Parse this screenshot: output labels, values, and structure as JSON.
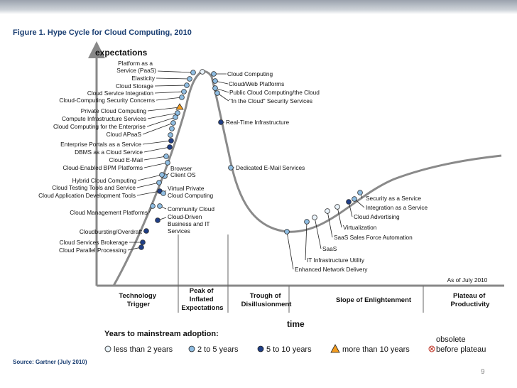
{
  "title": "Figure 1. Hype Cycle for Cloud Computing, 2010",
  "y_axis_label": "expectations",
  "x_axis_label": "time",
  "as_of": "As of July 2010",
  "source": "Source: Gartner (July 2010)",
  "page_number": "9",
  "phases": {
    "trigger": [
      "Technology",
      "Trigger"
    ],
    "peak": [
      "Peak of",
      "Inflated",
      "Expectations"
    ],
    "trough": [
      "Trough of",
      "Disillusionment"
    ],
    "slope": [
      "Slope of Enlightenment"
    ],
    "plateau": [
      "Plateau of",
      "Productivity"
    ]
  },
  "legend": {
    "title": "Years to mainstream adoption:",
    "less2": "less than 2 years",
    "two5": "2 to 5 years",
    "five10": "5 to 10 years",
    "more10": "more than 10 years",
    "obsolete": [
      "obsolete",
      "before plateau"
    ]
  },
  "labels": {
    "paas": [
      "Platform as a",
      "Service (PaaS)"
    ],
    "elasticity": "Elasticity",
    "cloud_storage": "Cloud Storage",
    "csi": "Cloud Service Integration",
    "ccsc": "Cloud-Computing Security Concerns",
    "pcc": "Private Cloud Computing",
    "cis": "Compute Infrastructure Services",
    "ccfe": "Cloud Computing for the Enterprise",
    "capaas": "Cloud APaaS",
    "epaas": "Enterprise Portals as a Service",
    "dbms": "DBMS as a Cloud Service",
    "cemail": "Cloud E-Mail",
    "cebpm": "Cloud-Enabled BPM Platforms",
    "hcc": "Hybrid Cloud Computing",
    "ctts": "Cloud Testing Tools and Service",
    "cadt": "Cloud Application Development Tools",
    "cmp": "Cloud Management Platforms",
    "cbo": "Cloudbursting/Overdraft",
    "csb": "Cloud Services Brokerage",
    "cpp": "Cloud Parallel Processing",
    "browser": [
      "Browser",
      "Client OS"
    ],
    "vpcc": [
      "Virtual Private",
      "Cloud Computing"
    ],
    "comm": "Community Cloud",
    "cdriven": [
      "Cloud-Driven",
      "Business and IT",
      "Services"
    ],
    "cc": "Cloud Computing",
    "cwp": "Cloud/Web Platforms",
    "pub": "Public Cloud Computing/the Cloud",
    "inthe": "\"In the Cloud\" Security Services",
    "rti": "Real-Time Infrastructure",
    "dems": "Dedicated E-Mail Services",
    "saas_svc": "Security as a Service",
    "iaas": "Integration as a Service",
    "cadv": "Cloud Advertising",
    "virt": "Virtualization",
    "sfa": "SaaS Sales Force Automation",
    "saas": "SaaS",
    "itiu": "IT Infrastructure Utility",
    "end": "Enhanced Network Delivery"
  },
  "colors": {
    "light": "#e8f2fa",
    "mid": "#8fbde2",
    "dark": "#1f3e86",
    "orange": "#f39c1f",
    "curve": "#8a8a8a",
    "title": "#1b3f73"
  }
}
